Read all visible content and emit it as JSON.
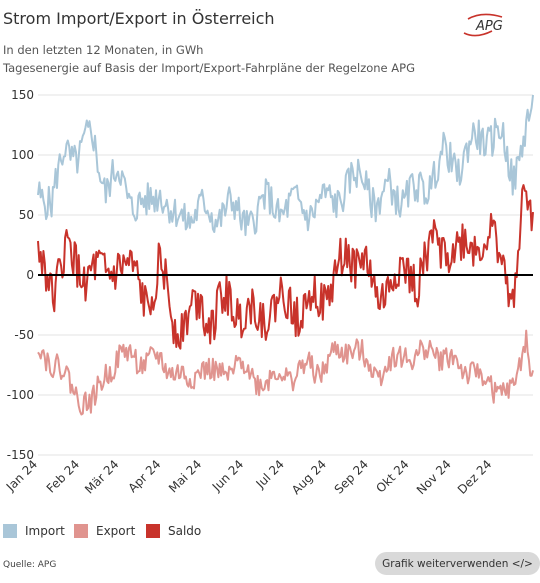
{
  "header": {
    "title": "Strom Import/Export in Österreich",
    "subtitle1": "In den letzten 12 Monaten, in GWh",
    "subtitle2": "Tagesenergie auf Basis der Import/Export-Fahrpläne der Regelzone APG",
    "logo_text": "APG"
  },
  "footer": {
    "source": "Quelle: APG",
    "reuse_button": "Grafik weiterverwenden </>"
  },
  "colors": {
    "import": "#a9c6d8",
    "export": "#e0948f",
    "saldo": "#c8332b",
    "zero_line": "#000000",
    "grid": "#e3e3e3"
  },
  "chart_data": {
    "type": "line",
    "title": "Strom Import/Export in Österreich",
    "ylim": [
      -150,
      150
    ],
    "yticks": [
      150,
      100,
      50,
      0,
      -50,
      -100,
      -150
    ],
    "xlim": [
      "2024-01-01",
      "2024-12-31"
    ],
    "xticks": [
      {
        "label": "Jan 24",
        "date": "2024-01-01"
      },
      {
        "label": "Feb 24",
        "date": "2024-02-01"
      },
      {
        "label": "Mär 24",
        "date": "2024-03-01"
      },
      {
        "label": "Apr 24",
        "date": "2024-04-01"
      },
      {
        "label": "Mai 24",
        "date": "2024-05-01"
      },
      {
        "label": "Jun 24",
        "date": "2024-06-01"
      },
      {
        "label": "Jul 24",
        "date": "2024-07-01"
      },
      {
        "label": "Aug 24",
        "date": "2024-08-01"
      },
      {
        "label": "Sep 24",
        "date": "2024-09-01"
      },
      {
        "label": "Okt 24",
        "date": "2024-10-01"
      },
      {
        "label": "Nov 24",
        "date": "2024-11-01"
      },
      {
        "label": "Dez 24",
        "date": "2024-12-01"
      }
    ],
    "series": [
      {
        "name": "Import",
        "x": [
          "2024-01-01",
          "2024-01-11",
          "2024-01-21",
          "2024-01-31",
          "2024-02-10",
          "2024-02-20",
          "2024-03-01",
          "2024-03-11",
          "2024-03-21",
          "2024-03-31",
          "2024-04-10",
          "2024-04-20",
          "2024-04-30",
          "2024-05-10",
          "2024-05-20",
          "2024-05-30",
          "2024-06-09",
          "2024-06-19",
          "2024-06-29",
          "2024-07-09",
          "2024-07-19",
          "2024-07-29",
          "2024-08-08",
          "2024-08-18",
          "2024-08-28",
          "2024-09-07",
          "2024-09-17",
          "2024-09-27",
          "2024-10-07",
          "2024-10-17",
          "2024-10-27",
          "2024-11-06",
          "2024-11-16",
          "2024-11-26",
          "2024-12-06",
          "2024-12-16",
          "2024-12-26",
          "2024-12-31"
        ],
        "values": [
          75,
          55,
          110,
          95,
          120,
          70,
          85,
          60,
          55,
          75,
          45,
          50,
          55,
          48,
          60,
          45,
          50,
          62,
          55,
          58,
          55,
          60,
          65,
          75,
          85,
          55,
          75,
          62,
          70,
          80,
          100,
          90,
          110,
          115,
          120,
          80,
          125,
          135
        ]
      },
      {
        "name": "Export",
        "x": [
          "2024-01-01",
          "2024-01-11",
          "2024-01-21",
          "2024-01-31",
          "2024-02-10",
          "2024-02-20",
          "2024-03-01",
          "2024-03-11",
          "2024-03-21",
          "2024-03-31",
          "2024-04-10",
          "2024-04-20",
          "2024-04-30",
          "2024-05-10",
          "2024-05-20",
          "2024-05-30",
          "2024-06-09",
          "2024-06-19",
          "2024-06-29",
          "2024-07-09",
          "2024-07-19",
          "2024-07-29",
          "2024-08-08",
          "2024-08-18",
          "2024-08-28",
          "2024-09-07",
          "2024-09-17",
          "2024-09-27",
          "2024-10-07",
          "2024-10-17",
          "2024-10-27",
          "2024-11-06",
          "2024-11-16",
          "2024-11-26",
          "2024-12-06",
          "2024-12-16",
          "2024-12-26",
          "2024-12-31"
        ],
        "values": [
          -60,
          -70,
          -85,
          -100,
          -110,
          -80,
          -70,
          -65,
          -75,
          -70,
          -80,
          -90,
          -75,
          -85,
          -80,
          -75,
          -85,
          -90,
          -80,
          -85,
          -75,
          -80,
          -65,
          -60,
          -70,
          -80,
          -75,
          -65,
          -70,
          -60,
          -70,
          -75,
          -80,
          -90,
          -95,
          -100,
          -50,
          -85
        ]
      },
      {
        "name": "Saldo",
        "x": [
          "2024-01-01",
          "2024-01-11",
          "2024-01-21",
          "2024-01-31",
          "2024-02-10",
          "2024-02-20",
          "2024-03-01",
          "2024-03-11",
          "2024-03-21",
          "2024-03-31",
          "2024-04-10",
          "2024-04-20",
          "2024-04-30",
          "2024-05-10",
          "2024-05-20",
          "2024-05-30",
          "2024-06-09",
          "2024-06-19",
          "2024-06-29",
          "2024-07-09",
          "2024-07-19",
          "2024-07-29",
          "2024-08-08",
          "2024-08-18",
          "2024-08-28",
          "2024-09-07",
          "2024-09-17",
          "2024-09-27",
          "2024-10-07",
          "2024-10-17",
          "2024-10-27",
          "2024-11-06",
          "2024-11-16",
          "2024-11-26",
          "2024-12-06",
          "2024-12-16",
          "2024-12-26",
          "2024-12-31"
        ],
        "values": [
          15,
          -15,
          25,
          -5,
          10,
          -10,
          15,
          -5,
          -20,
          5,
          -35,
          -40,
          -20,
          -37,
          -20,
          -30,
          -35,
          -28,
          -25,
          -27,
          -20,
          -20,
          0,
          15,
          15,
          -25,
          0,
          -3,
          0,
          20,
          30,
          15,
          30,
          25,
          25,
          -20,
          75,
          50
        ]
      }
    ],
    "legend": {
      "position": "bottom-left",
      "entries": [
        "Import",
        "Export",
        "Saldo"
      ]
    },
    "grid": true
  }
}
